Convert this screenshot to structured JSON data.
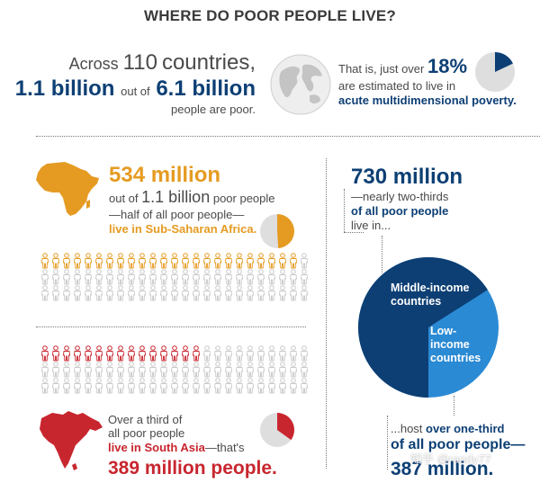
{
  "title": "WHERE DO POOR PEOPLE LIVE?",
  "global": {
    "across": "Across",
    "countries_num": "110",
    "countries_word": "countries,",
    "poor_num": "1.1 billion",
    "out_of": "out of",
    "total_num": "6.1 billion",
    "people_are_poor": "people are poor.",
    "that_is": "That is, just over",
    "percent": "18%",
    "estimated": "are estimated to live in",
    "acute": "acute multidimensional poverty.",
    "acute_share": 0.18
  },
  "africa": {
    "big": "534 million",
    "out_of": "out of",
    "of_num": "1.1 billion",
    "poor_people": "poor people",
    "half": "—half of all poor people—",
    "live_in": "live in Sub-Saharan Africa.",
    "share": 0.49
  },
  "people_grid_a": {
    "rows": 3,
    "cols": 25,
    "highlighted": 24,
    "highlight_color": "#e59b22"
  },
  "people_grid_b": {
    "rows": 3,
    "cols": 25,
    "highlighted": 15,
    "highlight_color": "#c8262f"
  },
  "south_asia": {
    "line1": "Over a third of",
    "line2": "all poor people",
    "line3_hl": "live in South Asia",
    "line3_rest": "—that's",
    "big": "389 million people.",
    "share": 0.35
  },
  "middle_income": {
    "big": "730 million",
    "line1": "—nearly two-thirds",
    "line2_hl": "of all poor people",
    "line3": "live in...",
    "pie_label_mid": [
      "Middle-income",
      "countries"
    ],
    "pie_label_low": [
      "Low-",
      "income",
      "countries"
    ],
    "middle_share": 0.66
  },
  "bottom": {
    "line1_pre": "...host",
    "line1_hl": "over one-third",
    "line2_hl": "of all poor people—",
    "big": "387 million."
  },
  "watermark": "知乎 @randy77",
  "colors": {
    "navy": "#0d3f74",
    "blue": "#2a8ad4",
    "orange": "#e59b22",
    "red": "#c8262f",
    "gray_icon": "#d0d0d0",
    "pie_gray": "#dedede"
  },
  "icons": {
    "globe": "globe-icon",
    "africa_map": "africa-map-icon",
    "south_asia_map": "south-asia-map-icon",
    "person": "person-icon"
  }
}
